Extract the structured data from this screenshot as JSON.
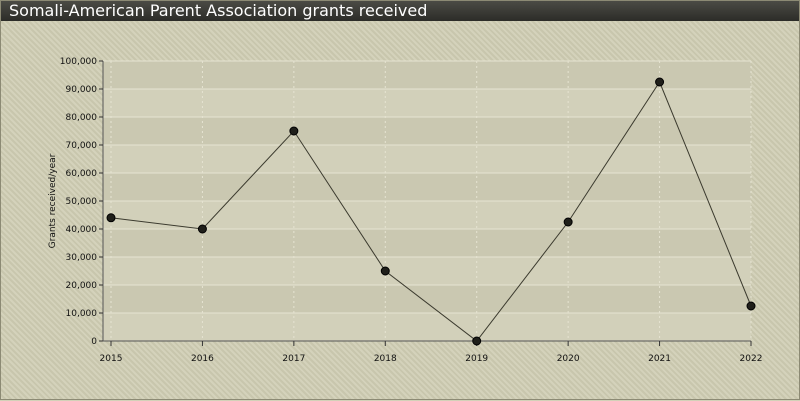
{
  "window": {
    "title": "Somali-American Parent Association grants received"
  },
  "colors": {
    "line": "#3b3a2e",
    "marker_fill": "#1f1f1a",
    "marker_stroke": "#000000"
  },
  "chart_data": {
    "type": "line",
    "title": "Somali-American Parent Association grants received",
    "xlabel": "",
    "ylabel": "Grants received/year",
    "categories": [
      "2015",
      "2016",
      "2017",
      "2018",
      "2019",
      "2020",
      "2021",
      "2022"
    ],
    "series": [
      {
        "values": [
          44000,
          40000,
          75000,
          25000,
          0,
          42500,
          92500,
          12500
        ]
      }
    ],
    "ylim": [
      0,
      100000
    ],
    "yticks": [
      "0",
      "10,000",
      "20,000",
      "30,000",
      "40,000",
      "50,000",
      "60,000",
      "70,000",
      "80,000",
      "90,000",
      "100,000"
    ],
    "grid": true,
    "legend": "none"
  }
}
